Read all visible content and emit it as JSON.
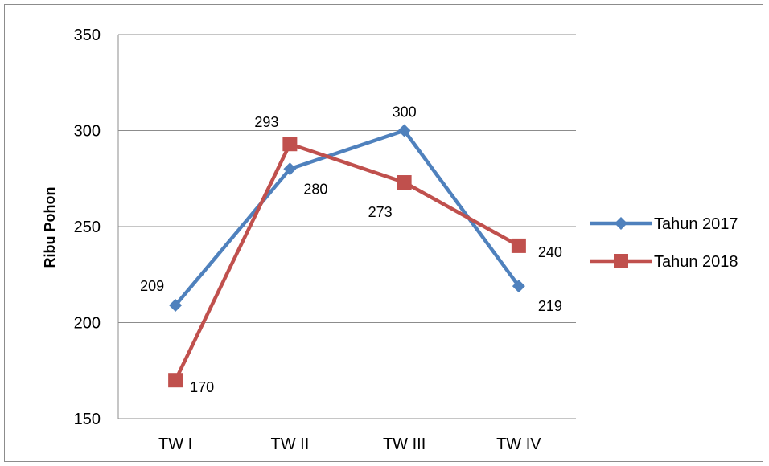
{
  "chart_data": {
    "type": "line",
    "title": "",
    "xlabel": "",
    "ylabel": "Ribu Pohon",
    "categories": [
      "TW I",
      "TW II",
      "TW III",
      "TW IV"
    ],
    "ylim": [
      150,
      350
    ],
    "yticks": [
      150,
      200,
      250,
      300,
      350
    ],
    "grid": true,
    "legend_position": "right",
    "series": [
      {
        "name": "Tahun 2017",
        "values": [
          209,
          280,
          300,
          219
        ],
        "color": "#4f81bd",
        "marker": "diamond",
        "labels": [
          "209",
          "280",
          "300",
          "219"
        ]
      },
      {
        "name": "Tahun 2018",
        "values": [
          170,
          293,
          273,
          240
        ],
        "color": "#c0504d",
        "marker": "square",
        "labels": [
          "170",
          "293",
          "273",
          "240"
        ]
      }
    ]
  }
}
